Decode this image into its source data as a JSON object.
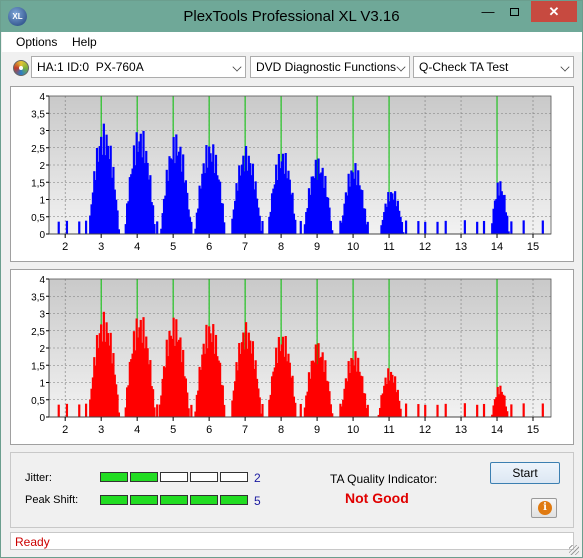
{
  "window": {
    "title": "PlexTools Professional XL V3.16",
    "app_icon_label": "XL"
  },
  "menu": {
    "items": [
      "Options",
      "Help"
    ]
  },
  "toolbar": {
    "drive_select": "HA:1 ID:0  PX-760A",
    "function_select": "DVD Diagnostic Functions",
    "test_select": "Q-Check TA Test"
  },
  "results": {
    "jitter_label": "Jitter:",
    "jitter_value": "2",
    "jitter_segments_on": 2,
    "peak_shift_label": "Peak Shift:",
    "peak_shift_value": "5",
    "peak_shift_segments_on": 5,
    "segments_total": 5,
    "ta_quality_label": "TA Quality Indicator:",
    "ta_quality_value": "Not Good",
    "start_label": "Start",
    "info_icon_glyph": "i"
  },
  "status": {
    "text": "Ready"
  },
  "colors": {
    "top_series": "#0000ff",
    "bottom_series": "#ff0000",
    "plot_bg_top": "#c9c9c9",
    "plot_bg_bottom": "#f2f2f2",
    "marker_line": "#00c000",
    "meter_on": "#22dd22"
  },
  "chart_data": [
    {
      "type": "bar",
      "series_color": "#0000ff",
      "y_ticks": [
        "0",
        "0,5",
        "1",
        "1,5",
        "2",
        "2,5",
        "3",
        "3,5",
        "4"
      ],
      "ylim": [
        0,
        4
      ],
      "x_ticks": [
        "2",
        "3",
        "4",
        "5",
        "6",
        "7",
        "8",
        "9",
        "10",
        "11",
        "12",
        "13",
        "14",
        "15"
      ],
      "xlim": [
        1.55,
        15.5
      ],
      "markers": [
        3,
        4,
        5,
        6,
        7,
        8,
        9,
        10,
        11,
        14
      ],
      "grid": true,
      "peaks": [
        {
          "center": 3.05,
          "height": 3.2,
          "width": 0.85
        },
        {
          "center": 4.05,
          "height": 3.15,
          "width": 0.85
        },
        {
          "center": 5.05,
          "height": 2.95,
          "width": 0.85
        },
        {
          "center": 6.0,
          "height": 2.75,
          "width": 0.85
        },
        {
          "center": 7.0,
          "height": 2.55,
          "width": 0.85
        },
        {
          "center": 8.0,
          "height": 2.5,
          "width": 0.8
        },
        {
          "center": 9.0,
          "height": 2.25,
          "width": 0.8
        },
        {
          "center": 10.0,
          "height": 2.1,
          "width": 0.75
        },
        {
          "center": 11.05,
          "height": 1.35,
          "width": 0.65
        },
        {
          "center": 14.05,
          "height": 1.6,
          "width": 0.5
        }
      ],
      "floor": 0.1
    },
    {
      "type": "bar",
      "series_color": "#ff0000",
      "y_ticks": [
        "0",
        "0,5",
        "1",
        "1,5",
        "2",
        "2,5",
        "3",
        "3,5",
        "4"
      ],
      "ylim": [
        0,
        4
      ],
      "x_ticks": [
        "2",
        "3",
        "4",
        "5",
        "6",
        "7",
        "8",
        "9",
        "10",
        "11",
        "12",
        "13",
        "14",
        "15"
      ],
      "xlim": [
        1.55,
        15.5
      ],
      "markers": [
        3,
        4,
        5,
        6,
        7,
        8,
        9,
        10,
        11,
        14
      ],
      "grid": true,
      "peaks": [
        {
          "center": 3.05,
          "height": 3.05,
          "width": 0.85
        },
        {
          "center": 4.05,
          "height": 3.05,
          "width": 0.85
        },
        {
          "center": 5.0,
          "height": 2.95,
          "width": 0.85
        },
        {
          "center": 6.0,
          "height": 2.85,
          "width": 0.85
        },
        {
          "center": 7.0,
          "height": 2.75,
          "width": 0.85
        },
        {
          "center": 8.0,
          "height": 2.5,
          "width": 0.8
        },
        {
          "center": 9.0,
          "height": 2.2,
          "width": 0.8
        },
        {
          "center": 10.0,
          "height": 1.95,
          "width": 0.75
        },
        {
          "center": 11.0,
          "height": 1.45,
          "width": 0.65
        },
        {
          "center": 14.05,
          "height": 0.95,
          "width": 0.45
        }
      ],
      "floor": 0.1
    }
  ]
}
